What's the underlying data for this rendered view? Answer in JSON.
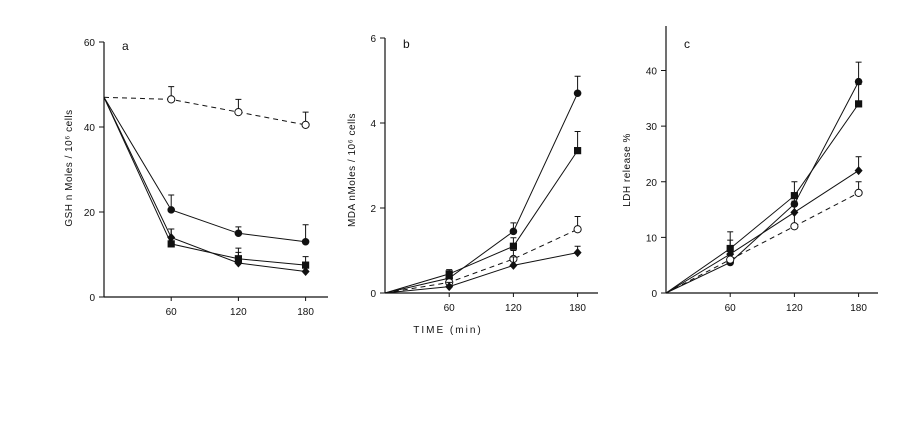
{
  "xlabel": "TIME (min)",
  "chart_data": [
    {
      "type": "line",
      "panel": "a",
      "ylabel": "GSH n Moles / 10⁶ cells",
      "ylim": [
        0,
        60
      ],
      "yticks": [
        "0",
        "20",
        "40",
        "60"
      ],
      "x": [
        0,
        60,
        120,
        180
      ],
      "xticks": [
        "60",
        "120",
        "180"
      ],
      "series": [
        {
          "marker": "open-circle",
          "dashed": true,
          "values": [
            47,
            46.5,
            43.5,
            40.5
          ],
          "err": [
            0,
            3,
            3,
            3
          ]
        },
        {
          "marker": "filled-circle",
          "dashed": false,
          "values": [
            47,
            20.5,
            15,
            13
          ],
          "err": [
            0,
            3.5,
            1.5,
            4
          ]
        },
        {
          "marker": "filled-diamond",
          "dashed": false,
          "values": [
            47,
            14,
            8,
            6
          ],
          "err": [
            0,
            2,
            2.5,
            1.5
          ]
        },
        {
          "marker": "filled-square",
          "dashed": false,
          "values": [
            47,
            12.5,
            9,
            7.5
          ],
          "err": [
            0,
            3.5,
            2.5,
            2
          ]
        }
      ]
    },
    {
      "type": "line",
      "panel": "b",
      "ylabel": "MDA nMoles / 10⁶ cells",
      "ylim": [
        0,
        6
      ],
      "yticks": [
        "0",
        "2",
        "4",
        "6"
      ],
      "x": [
        0,
        60,
        120,
        180
      ],
      "xticks": [
        "60",
        "120",
        "180"
      ],
      "series": [
        {
          "marker": "filled-circle",
          "dashed": false,
          "values": [
            0,
            0.35,
            1.45,
            4.7
          ],
          "err": [
            0,
            0.1,
            0.2,
            0.4
          ]
        },
        {
          "marker": "filled-square",
          "dashed": false,
          "values": [
            0,
            0.45,
            1.1,
            3.35
          ],
          "err": [
            0,
            0.1,
            0.2,
            0.45
          ]
        },
        {
          "marker": "open-circle",
          "dashed": true,
          "values": [
            0,
            0.25,
            0.8,
            1.5
          ],
          "err": [
            0,
            0.1,
            0.2,
            0.3
          ]
        },
        {
          "marker": "filled-diamond",
          "dashed": false,
          "values": [
            0,
            0.15,
            0.65,
            0.95
          ],
          "err": [
            0,
            0.1,
            0.2,
            0.15
          ]
        }
      ]
    },
    {
      "type": "line",
      "panel": "c",
      "ylabel": "LDH release %",
      "ylim": [
        0,
        48
      ],
      "yticks": [
        "0",
        "10",
        "20",
        "30",
        "40"
      ],
      "x": [
        0,
        60,
        120,
        180
      ],
      "xticks": [
        "60",
        "120",
        "180"
      ],
      "series": [
        {
          "marker": "filled-circle",
          "dashed": false,
          "values": [
            0,
            5.5,
            16,
            38
          ],
          "err": [
            0,
            1.5,
            2,
            3.5
          ]
        },
        {
          "marker": "filled-square",
          "dashed": false,
          "values": [
            0,
            8,
            17.5,
            34
          ],
          "err": [
            0,
            3,
            2.5,
            3.5
          ]
        },
        {
          "marker": "filled-diamond",
          "dashed": false,
          "values": [
            0,
            7,
            14.5,
            22
          ],
          "err": [
            0,
            2.5,
            2,
            2.5
          ]
        },
        {
          "marker": "open-circle",
          "dashed": true,
          "values": [
            0,
            6,
            12,
            18
          ],
          "err": [
            0,
            2,
            2.5,
            2
          ]
        }
      ]
    }
  ]
}
